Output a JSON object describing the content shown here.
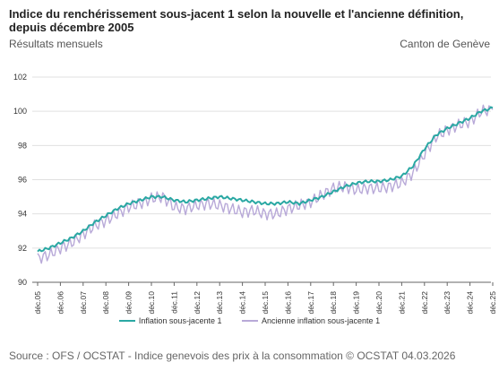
{
  "header": {
    "title": "Indice du renchérissement sous-jacent 1 selon la nouvelle et l'ancienne définition, depuis décembre 2005",
    "subtitle": "Résultats mensuels",
    "region": "Canton de Genève"
  },
  "footer": {
    "source": "Source :  OFS / OCSTAT - Indice genevois des prix à la consommation  © OCSTAT 04.03.2026"
  },
  "colors": {
    "new_series": "#2aa8a3",
    "old_series": "#b8a9d8",
    "grid": "#e0e0e0",
    "axis": "#666666"
  },
  "chart_data": {
    "type": "line",
    "ylim": [
      90,
      102
    ],
    "yticks": [
      90,
      92,
      94,
      96,
      98,
      100,
      102
    ],
    "grid": true,
    "legend_position": "bottom",
    "x_tick_labels": [
      "déc.05",
      "déc.06",
      "déc.07",
      "déc.08",
      "déc.09",
      "déc.10",
      "déc.11",
      "déc.12",
      "déc.13",
      "déc.14",
      "déc.15",
      "déc.16",
      "déc.17",
      "déc.18",
      "déc.19",
      "déc.20",
      "déc.21",
      "déc.22",
      "déc.23",
      "déc.24",
      "déc.25"
    ],
    "x_start": "déc.05",
    "series": [
      {
        "name": "Inflation sous-jacente 1",
        "color": "#2aa8a3",
        "frequency": "semestrial approx.",
        "values": [
          91.8,
          92.0,
          92.3,
          92.6,
          93.0,
          93.5,
          93.9,
          94.3,
          94.6,
          94.8,
          95.0,
          95.0,
          94.8,
          94.7,
          94.8,
          94.9,
          95.0,
          94.9,
          94.8,
          94.7,
          94.6,
          94.6,
          94.7,
          94.6,
          94.8,
          95.0,
          95.3,
          95.6,
          95.8,
          95.9,
          95.9,
          96.0,
          96.2,
          96.8,
          97.8,
          98.6,
          99.0,
          99.3,
          99.6,
          100.0,
          100.2
        ]
      },
      {
        "name": "Ancienne inflation sous-jacente 1",
        "color": "#b8a9d8",
        "frequency": "semestrial approx.",
        "values": [
          91.4,
          91.6,
          92.0,
          92.3,
          92.8,
          93.3,
          93.6,
          94.0,
          94.4,
          94.6,
          94.9,
          95.0,
          94.4,
          94.3,
          94.5,
          94.6,
          94.5,
          94.3,
          94.1,
          94.2,
          94.0,
          94.0,
          94.3,
          94.5,
          94.7,
          95.1,
          95.5,
          95.6,
          95.4,
          95.5,
          95.5,
          95.6,
          95.8,
          96.4,
          97.5,
          98.5,
          98.9,
          99.2,
          99.4,
          100.0,
          100.1
        ]
      }
    ]
  }
}
